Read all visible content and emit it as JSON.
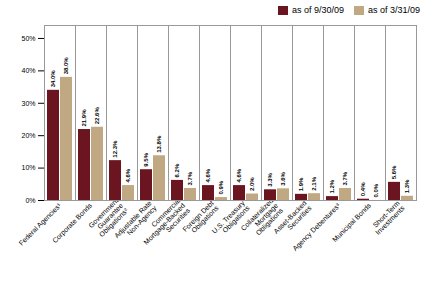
{
  "chart_data": {
    "type": "bar",
    "categories": [
      "Federal Agencies¹",
      "Corporate Bonds",
      "Government\nGuarantee\nObligations²",
      "Adjustable Rate\nNon-Agency",
      "Commercial\nMortgage-Backed\nSecurities",
      "Foreign Debt\nObligations",
      "U.S. Treasury\nObligations",
      "Collateralized\nMortgage\nObligations",
      "Asset-Backed\nSecurities",
      "Agency Debentures³",
      "Municipal Bonds",
      "Short-Term\nInvestments"
    ],
    "series": [
      {
        "name": "as of 9/30/09",
        "color": "#6B1520",
        "values": [
          34.0,
          21.9,
          12.3,
          9.5,
          6.2,
          4.6,
          4.6,
          3.3,
          1.9,
          1.2,
          0.4,
          5.6
        ],
        "value_labels": [
          "34.0%",
          "21.9%",
          "12.3%",
          "9.5%",
          "6.2%",
          "4.6%",
          "4.6%",
          "3.3%",
          "1.9%",
          "1.2%",
          "0.4%",
          "5.6%"
        ]
      },
      {
        "name": "as of 3/31/09",
        "color": "#BFA882",
        "values": [
          38.0,
          22.6,
          4.6,
          13.8,
          3.7,
          0.9,
          2.0,
          3.6,
          2.1,
          3.7,
          0.0,
          1.3
        ],
        "value_labels": [
          "38.0%",
          "22.6%",
          "4.6%",
          "13.8%",
          "3.7%",
          "0.9%",
          "2.0%",
          "3.6%",
          "2.1%",
          "3.7%",
          "0.0%",
          "1.3%"
        ]
      }
    ],
    "ylim": [
      0,
      54
    ],
    "yticks": [
      {
        "value": 0,
        "label": "0%"
      },
      {
        "value": 10,
        "label": "10%"
      },
      {
        "value": 20,
        "label": "20%"
      },
      {
        "value": 30,
        "label": "30%"
      },
      {
        "value": 40,
        "label": "40%"
      },
      {
        "value": 50,
        "label": "50%"
      }
    ],
    "grid": false,
    "legend": "upper right",
    "data_labels": true
  }
}
